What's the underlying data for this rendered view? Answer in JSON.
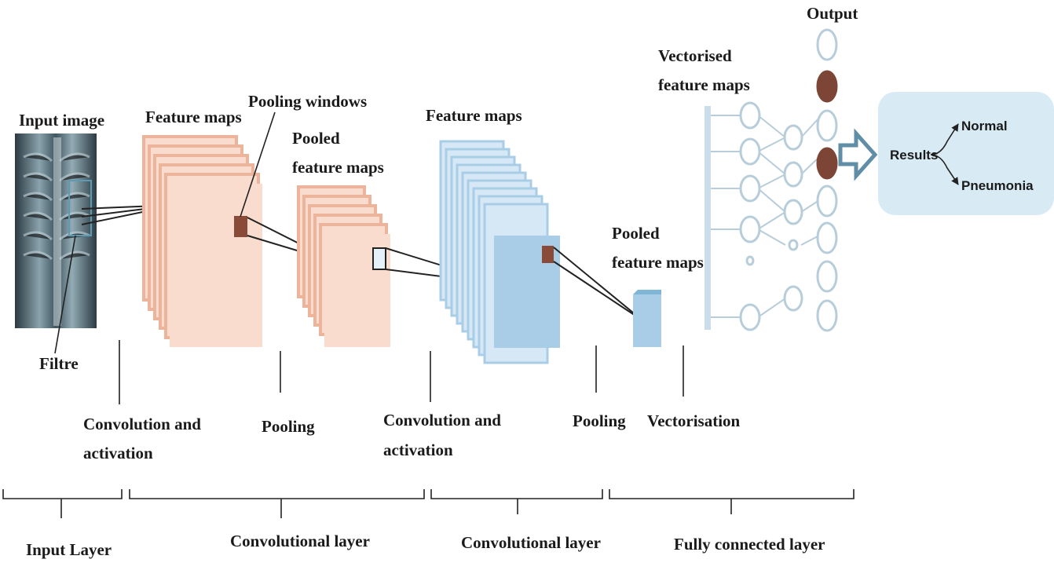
{
  "labels": {
    "input_image": "Input image",
    "filtre": "Filtre",
    "feature_maps_1": "Feature maps",
    "pooling_windows": "Pooling windows",
    "pooled_feature_maps_1_line1": "Pooled",
    "pooled_feature_maps_1_line2": "feature maps",
    "feature_maps_2": "Feature maps",
    "pooled_feature_maps_2_line1": "Pooled",
    "pooled_feature_maps_2_line2": "feature maps",
    "vectorised_line1": "Vectorised",
    "vectorised_line2": "feature maps",
    "output": "Output",
    "results": "Results",
    "normal": "Normal",
    "pneumonia": "Pneumonia"
  },
  "steps": {
    "conv1_line1": "Convolution and",
    "conv1_line2": "activation",
    "pooling1": "Pooling",
    "conv2_line1": "Convolution and",
    "conv2_line2": "activation",
    "pooling2": "Pooling",
    "vectorisation": "Vectorisation"
  },
  "layers": {
    "input": "Input Layer",
    "conv1": "Convolutional layer",
    "conv2": "Convolutional layer",
    "fc": "Fully connected layer"
  },
  "colors": {
    "salmon_dark": "#ebb49b",
    "salmon_light": "#f9dccd",
    "blue_dark": "#a9cde6",
    "blue_light": "#d6e8f5",
    "node_filled": "#7d4536",
    "results_bg": "#d8ebf5",
    "xray_bg": "#3f5560"
  }
}
